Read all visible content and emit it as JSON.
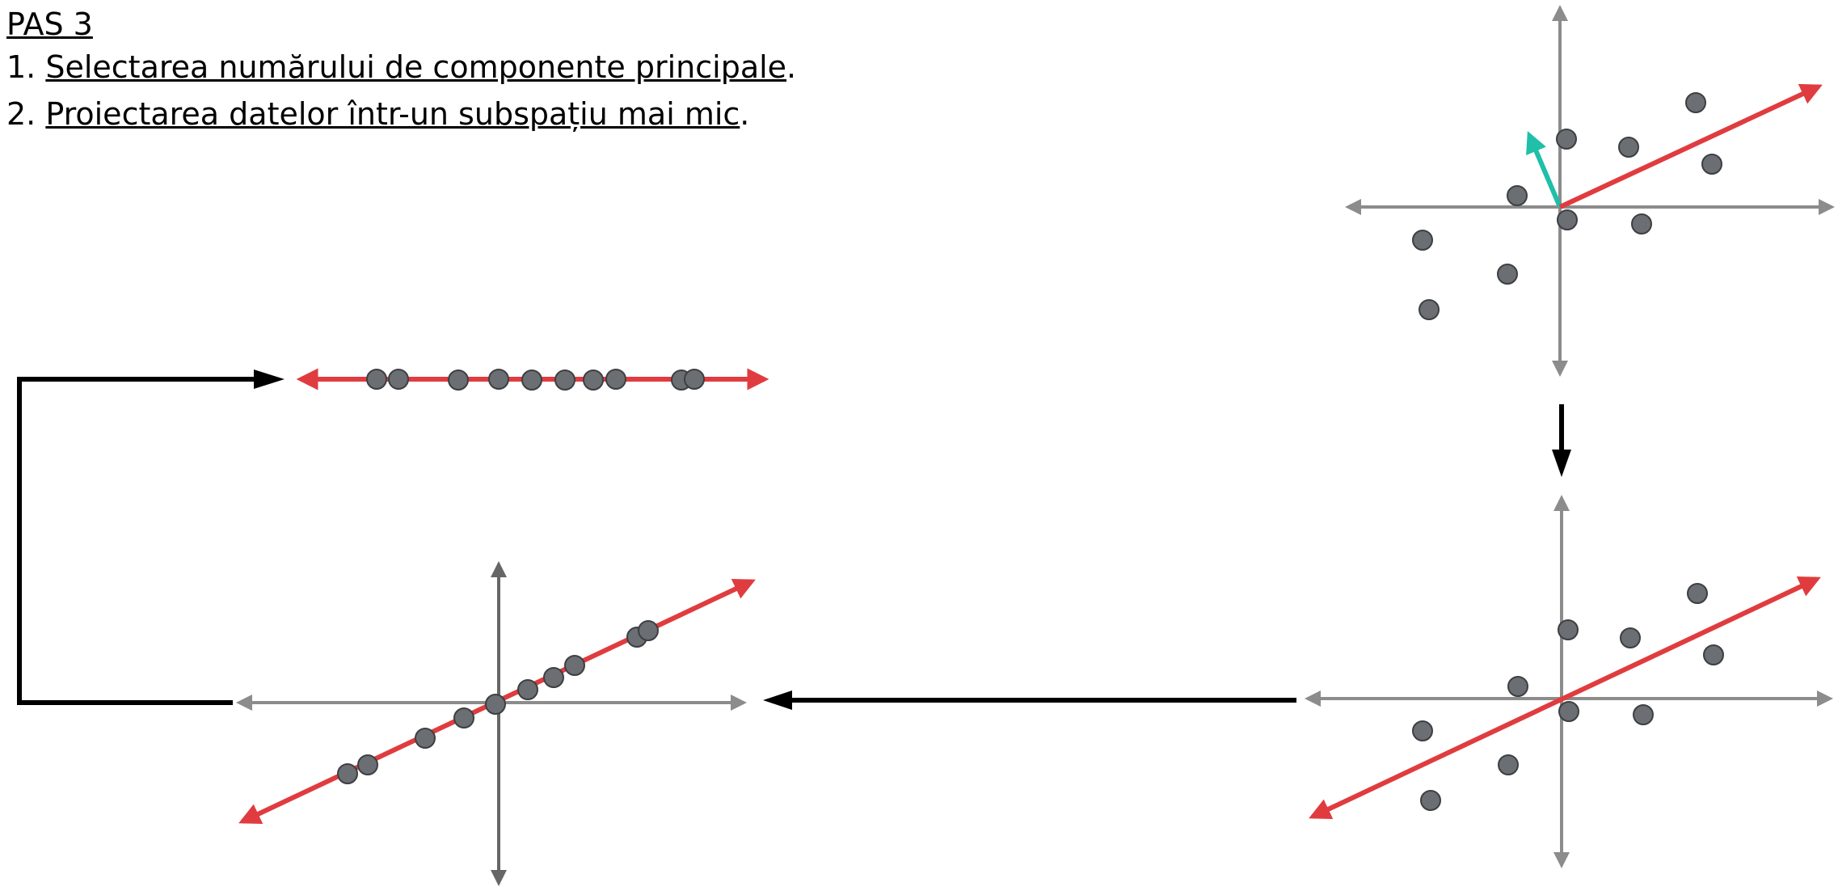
{
  "heading": {
    "title": "PAS 3",
    "steps": [
      {
        "num": "1. ",
        "text": "Selectarea numărului de componente principale",
        "end": "."
      },
      {
        "num": "2. ",
        "text": "Proiectarea datelor într-un subspațiu mai mic",
        "end": "."
      }
    ]
  },
  "colors": {
    "axis": "#8c8c8c",
    "axis_dark": "#666666",
    "principal_component": "#e03c3f",
    "second_component": "#1fbfa8",
    "point": "#6b6e72",
    "point_outline": "#3d3f42",
    "flow_arrow": "#000000"
  },
  "icons": [
    "flow-arrow-down",
    "flow-arrow-left",
    "flow-arrow-elbow"
  ]
}
